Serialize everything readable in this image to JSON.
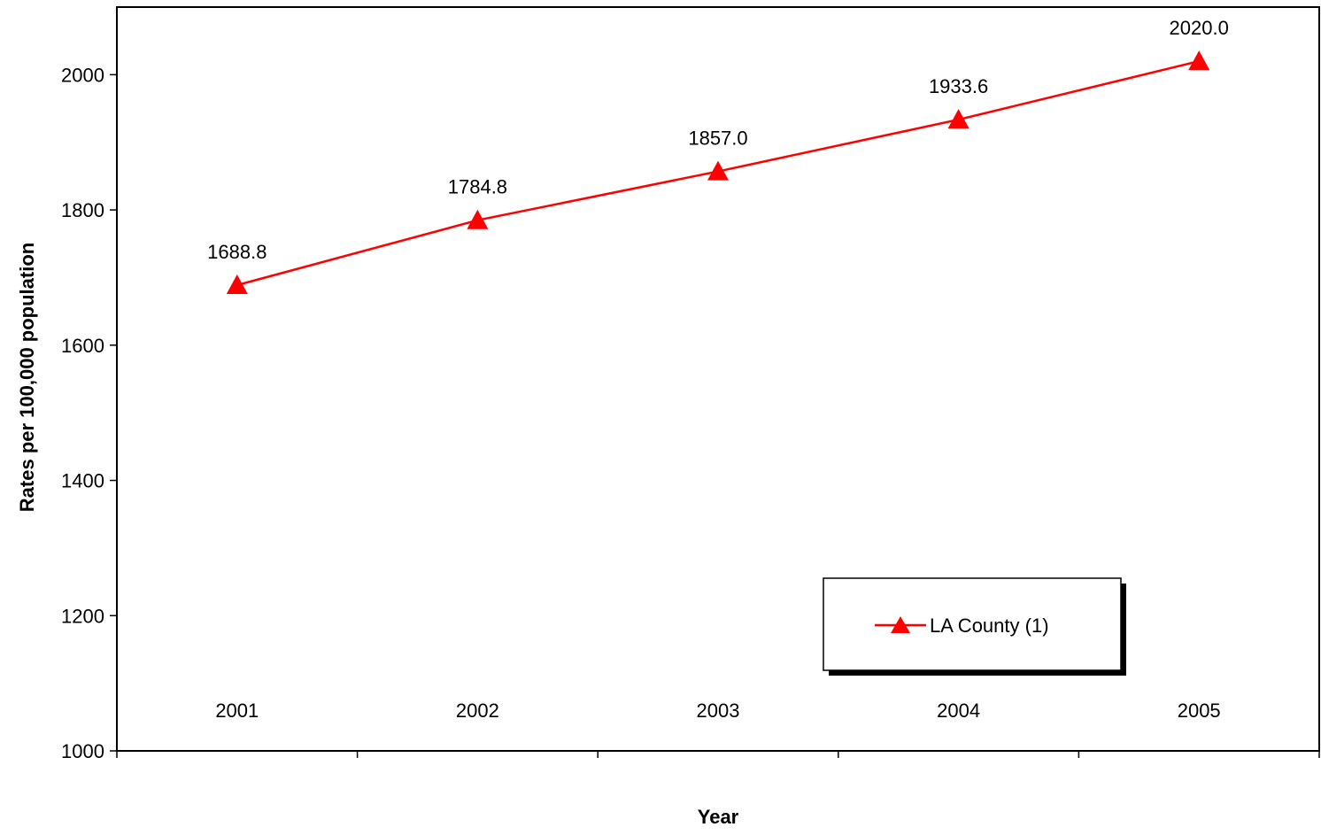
{
  "chart_data": {
    "type": "line",
    "title": "",
    "xlabel": "Year",
    "ylabel": "Rates per 100,000 population",
    "categories": [
      "2001",
      "2002",
      "2003",
      "2004",
      "2005"
    ],
    "series": [
      {
        "name": "LA County (1)",
        "values": [
          1688.8,
          1784.8,
          1857.0,
          1933.6,
          2020.0
        ],
        "labels": [
          "1688.8",
          "1784.8",
          "1857.0",
          "1933.6",
          "2020.0"
        ],
        "color": "#ff0000",
        "marker": "triangle"
      }
    ],
    "ylim": [
      1000,
      2100
    ],
    "yticks": [
      1000,
      1200,
      1400,
      1600,
      1800,
      2000
    ],
    "grid": false,
    "legend": "bottom-right"
  }
}
